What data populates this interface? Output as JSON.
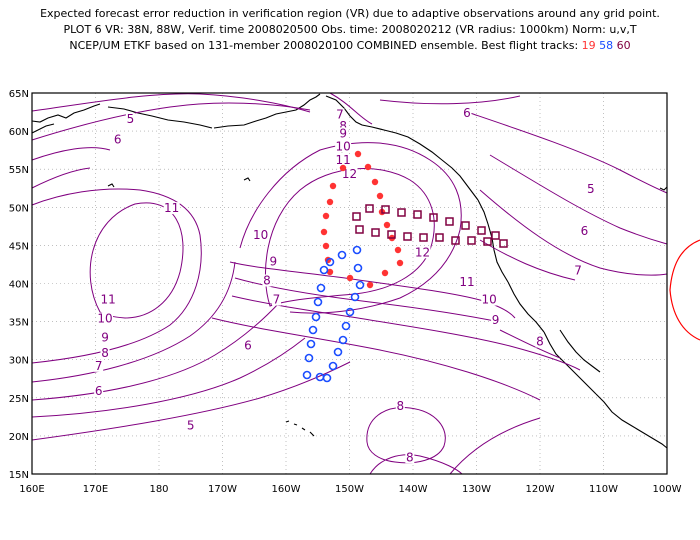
{
  "title": {
    "line1": "Expected forecast error reduction in verification region (VR) due to adaptive observations around any grid point.",
    "line2": "PLOT 6 VR: 38N, 88W, Verif. time 2008020500 Obs. time: 2008020212 (VR radius: 1000km) Norm: u,v,T",
    "line3_prefix": "NCEP/UM ETKF based on 131-member 2008020100 COMBINED ensemble.  Best flight tracks:",
    "track_ids": [
      "19",
      "58",
      "60"
    ]
  },
  "colors": {
    "contour": "#800080",
    "land": "#000000",
    "grid": "#9a9a9a",
    "track_19": "#ff3333",
    "track_58": "#1a4dff",
    "track_60": "#800040",
    "vr_circle": "#ff0000"
  },
  "axes": {
    "x_ticks": [
      "160E",
      "170E",
      "180",
      "170W",
      "160W",
      "150W",
      "140W",
      "130W",
      "120W",
      "110W",
      "100W"
    ],
    "y_ticks": [
      "65N",
      "60N",
      "55N",
      "50N",
      "45N",
      "40N",
      "35N",
      "30N",
      "25N",
      "20N",
      "15N"
    ],
    "lon_range": [
      160,
      260
    ],
    "lat_range": [
      15,
      65
    ]
  },
  "contour_labels": [
    {
      "text": "5",
      "lon": 175.5,
      "lat": 61.2
    },
    {
      "text": "6",
      "lon": 173.5,
      "lat": 58.5
    },
    {
      "text": "7",
      "lon": 208.5,
      "lat": 61.8
    },
    {
      "text": "8",
      "lon": 209.0,
      "lat": 60.3
    },
    {
      "text": "9",
      "lon": 209.0,
      "lat": 59.3
    },
    {
      "text": "10",
      "lon": 209.0,
      "lat": 57.6
    },
    {
      "text": "11",
      "lon": 209.0,
      "lat": 55.8
    },
    {
      "text": "12",
      "lon": 210.0,
      "lat": 54.0
    },
    {
      "text": "6",
      "lon": 228.5,
      "lat": 62.0
    },
    {
      "text": "5",
      "lon": 248.0,
      "lat": 52.0
    },
    {
      "text": "6",
      "lon": 247.0,
      "lat": 46.5
    },
    {
      "text": "7",
      "lon": 246.0,
      "lat": 41.3
    },
    {
      "text": "11",
      "lon": 182.0,
      "lat": 49.5
    },
    {
      "text": "10",
      "lon": 196.0,
      "lat": 46.0
    },
    {
      "text": "9",
      "lon": 198.0,
      "lat": 42.5
    },
    {
      "text": "8",
      "lon": 197.0,
      "lat": 40.0
    },
    {
      "text": "7",
      "lon": 198.5,
      "lat": 37.5
    },
    {
      "text": "12",
      "lon": 221.5,
      "lat": 43.7
    },
    {
      "text": "11",
      "lon": 228.5,
      "lat": 39.8
    },
    {
      "text": "10",
      "lon": 232.0,
      "lat": 37.5
    },
    {
      "text": "9",
      "lon": 233.0,
      "lat": 34.8
    },
    {
      "text": "8",
      "lon": 240.0,
      "lat": 32.0
    },
    {
      "text": "11",
      "lon": 172.0,
      "lat": 37.5
    },
    {
      "text": "10",
      "lon": 171.5,
      "lat": 35.0
    },
    {
      "text": "9",
      "lon": 171.5,
      "lat": 32.5
    },
    {
      "text": "8",
      "lon": 171.5,
      "lat": 30.5
    },
    {
      "text": "7",
      "lon": 170.5,
      "lat": 28.8
    },
    {
      "text": "6",
      "lon": 170.5,
      "lat": 25.5
    },
    {
      "text": "5",
      "lon": 185.0,
      "lat": 21.0
    },
    {
      "text": "6",
      "lon": 194.0,
      "lat": 31.5
    },
    {
      "text": "8",
      "lon": 218.0,
      "lat": 23.5
    },
    {
      "text": "8",
      "lon": 219.5,
      "lat": 16.8
    }
  ]
}
